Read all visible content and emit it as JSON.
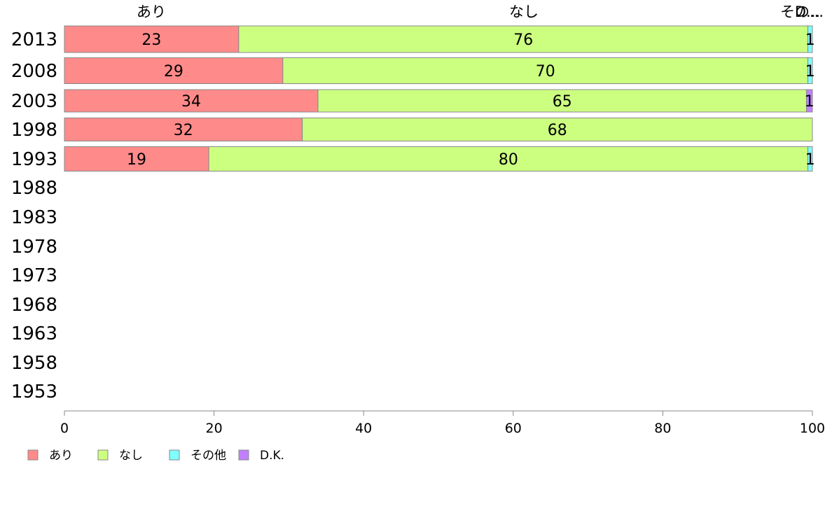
{
  "chart_data": {
    "type": "bar",
    "orientation": "horizontal",
    "stacked": true,
    "categories": [
      "2013",
      "2008",
      "2003",
      "1998",
      "1993",
      "1988",
      "1983",
      "1978",
      "1973",
      "1968",
      "1963",
      "1958",
      "1953"
    ],
    "series": [
      {
        "name": "あり",
        "color": "#ff8a8a",
        "values": [
          23.3,
          29.2,
          33.9,
          31.8,
          19.3,
          null,
          null,
          null,
          null,
          null,
          null,
          null,
          null
        ],
        "labels": [
          "23",
          "29",
          "34",
          "32",
          "19"
        ]
      },
      {
        "name": "なし",
        "color": "#ccff80",
        "values": [
          76.1,
          70.2,
          65.3,
          68.2,
          80.1,
          null,
          null,
          null,
          null,
          null,
          null,
          null,
          null
        ],
        "labels": [
          "76",
          "70",
          "65",
          "68",
          "80"
        ]
      },
      {
        "name": "その他",
        "color": "#80ffff",
        "values": [
          0.6,
          0.6,
          0.0,
          0.0,
          0.6,
          null,
          null,
          null,
          null,
          null,
          null,
          null,
          null
        ],
        "labels": [
          "1",
          "1",
          "",
          "",
          "1"
        ]
      },
      {
        "name": "D.K.",
        "color": "#c080ff",
        "values": [
          0.0,
          0.0,
          0.8,
          0.0,
          0.0,
          null,
          null,
          null,
          null,
          null,
          null,
          null,
          null
        ],
        "labels": [
          "",
          "",
          "1",
          "",
          ""
        ]
      }
    ],
    "top_labels": [
      "あり",
      "なし",
      "その...",
      "D..."
    ],
    "xlim": [
      0,
      100
    ],
    "xticks": [
      "0",
      "20",
      "40",
      "60",
      "80",
      "100"
    ],
    "grid": false,
    "legend_position": "bottom-left"
  }
}
